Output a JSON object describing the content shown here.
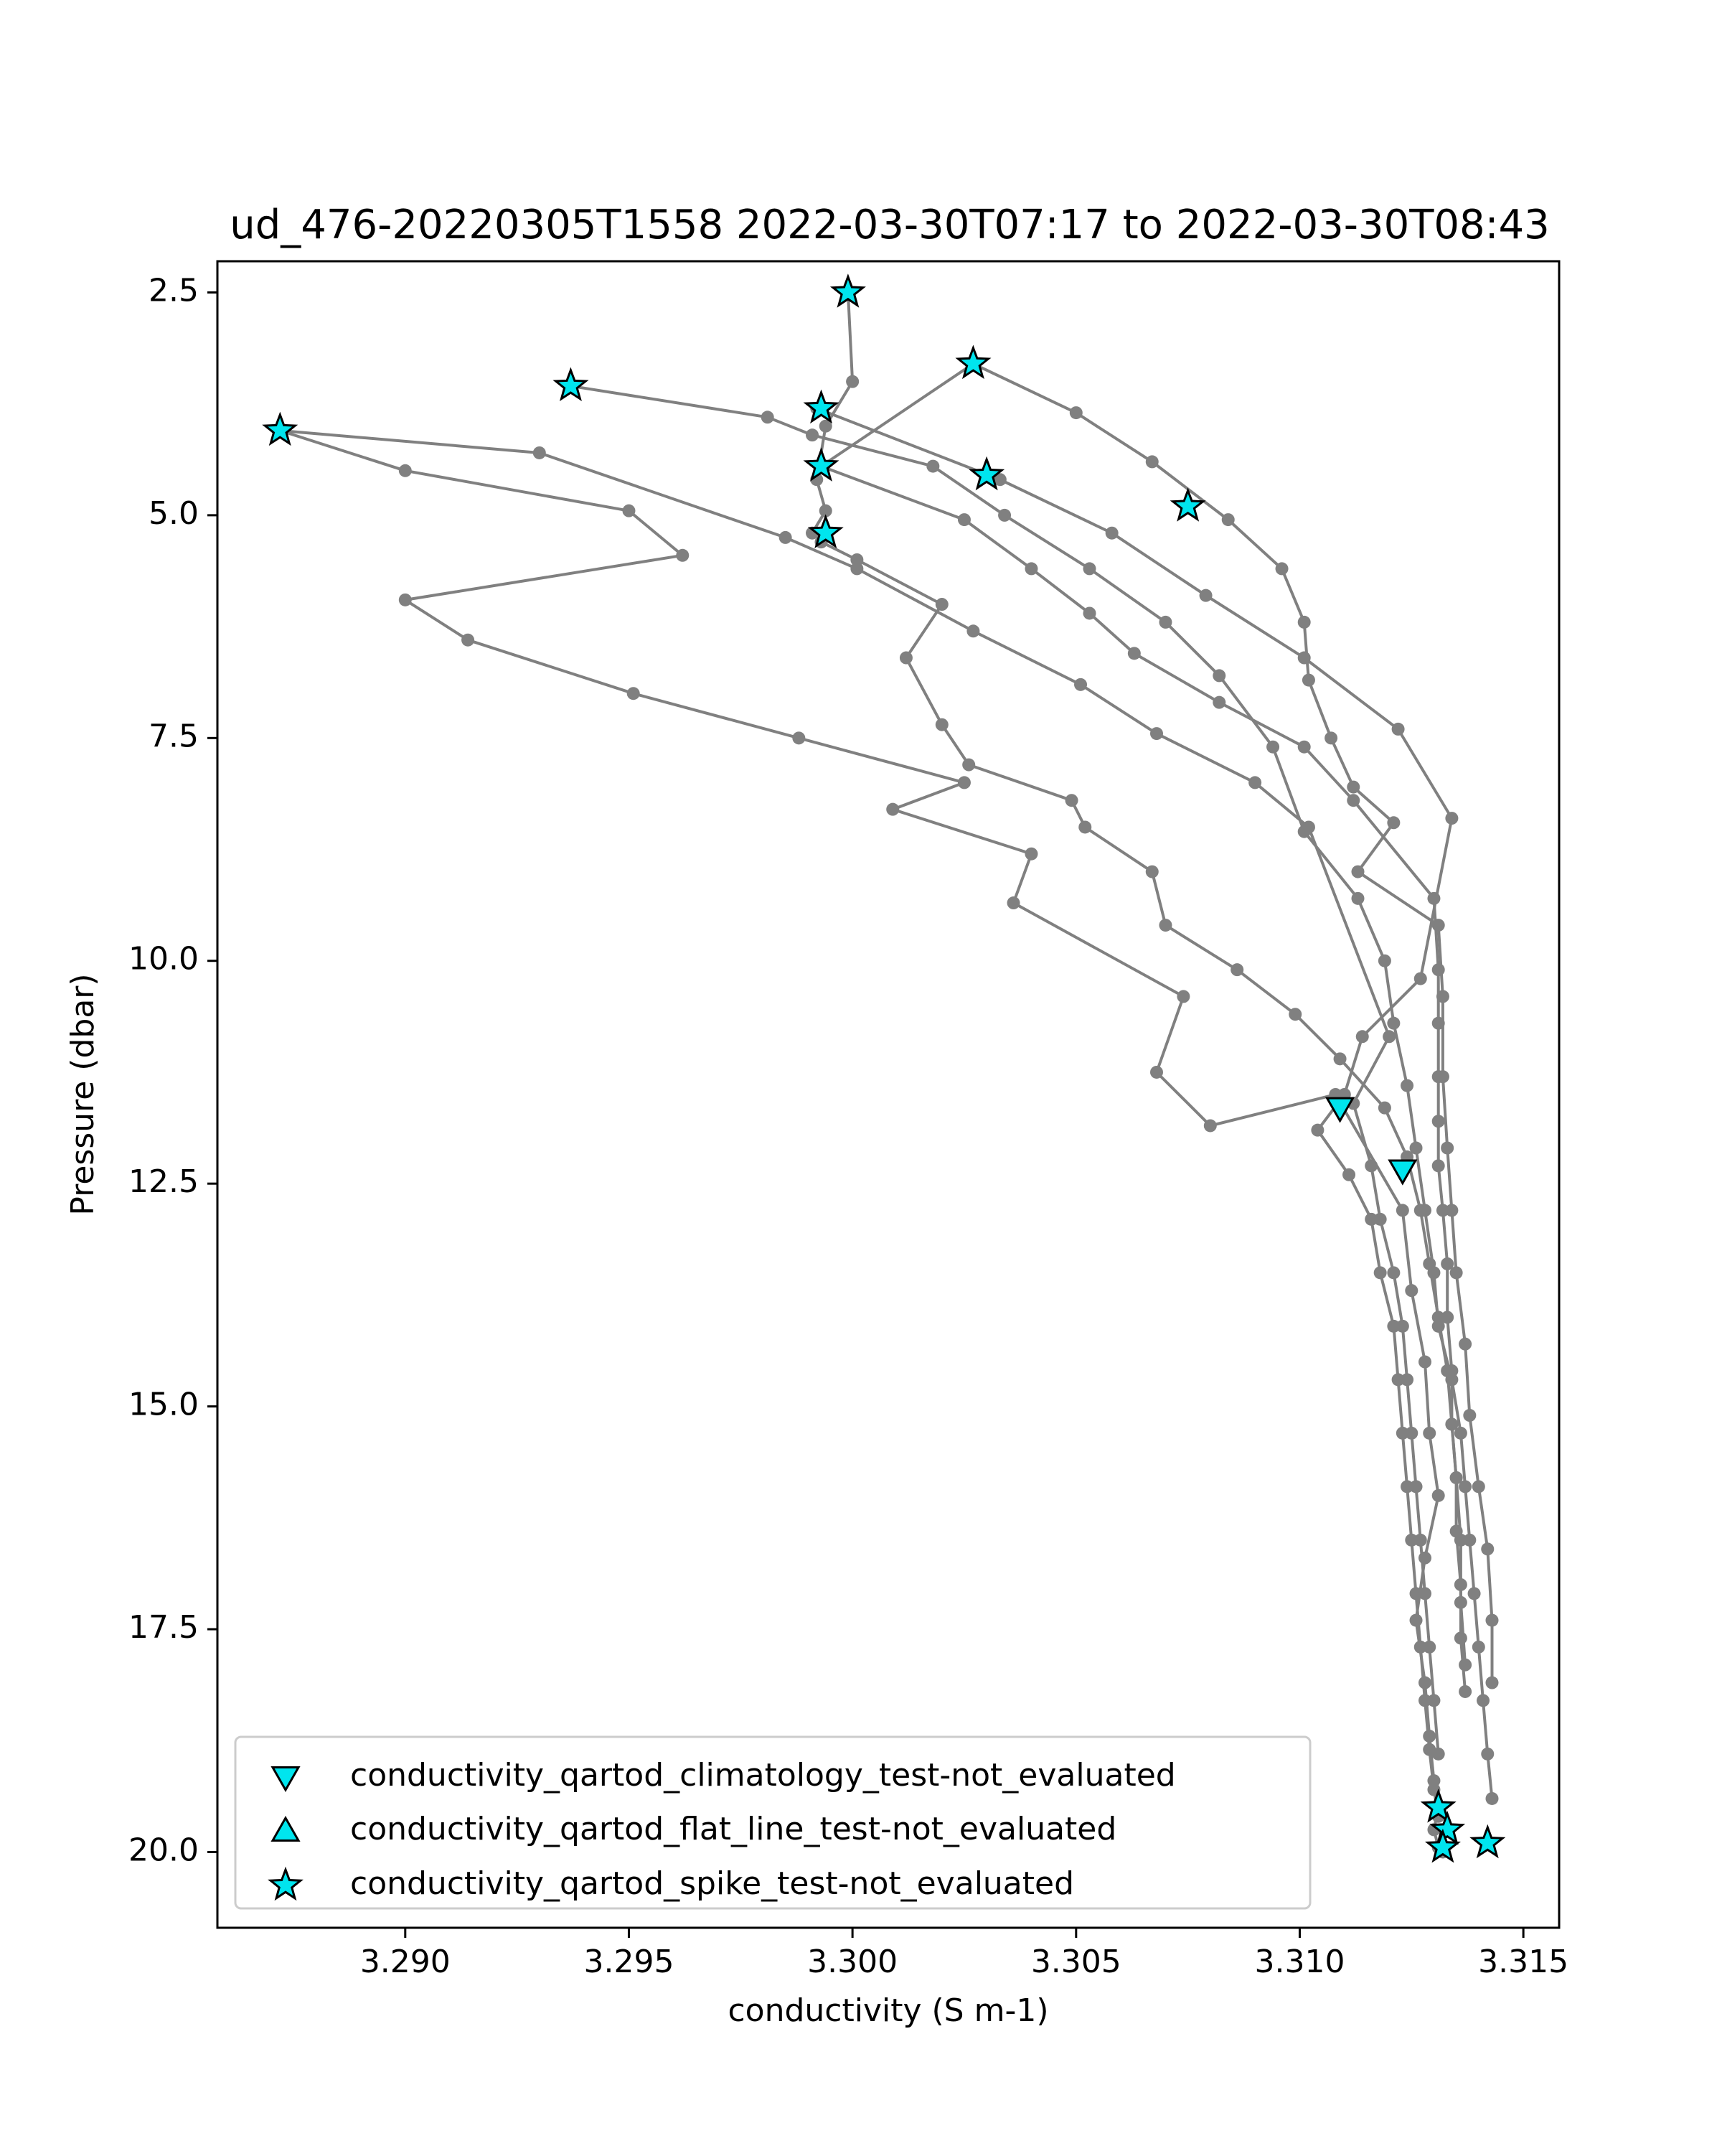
{
  "chart_data": {
    "type": "scatter",
    "title": "ud_476-20220305T1558 2022-03-30T07:17 to 2022-03-30T08:43",
    "xlabel": "conductivity (S m-1)",
    "ylabel": "Pressure (dbar)",
    "xlim": [
      3.2858,
      3.3158
    ],
    "ylim": [
      20.85,
      2.15
    ],
    "y_inverted": true,
    "grid": false,
    "x_ticks": [
      3.29,
      3.295,
      3.3,
      3.305,
      3.31,
      3.315
    ],
    "x_tick_labels": [
      "3.290",
      "3.295",
      "3.300",
      "3.305",
      "3.310",
      "3.315"
    ],
    "y_ticks": [
      2.5,
      5.0,
      7.5,
      10.0,
      12.5,
      15.0,
      17.5,
      20.0
    ],
    "y_tick_labels": [
      "2.5",
      "5.0",
      "7.5",
      "10.0",
      "12.5",
      "15.0",
      "17.5",
      "20.0"
    ],
    "line_color": "#808080",
    "marker_fill": "#00e5ee",
    "marker_edge": "#000000",
    "profiles": [
      {
        "x": [
          3.2872,
          3.29,
          3.295,
          3.2962,
          3.29,
          3.2914,
          3.2951,
          3.2988,
          3.3025,
          3.3009,
          3.304,
          3.3036,
          3.3074,
          3.3068,
          3.308,
          3.3108,
          3.3123,
          3.3125,
          3.3128,
          3.3129,
          3.3131,
          3.3128,
          3.3126,
          3.3128,
          3.3129,
          3.313,
          3.3131,
          3.313,
          3.3131,
          3.3132
        ],
        "y": [
          4.05,
          4.5,
          4.95,
          5.45,
          5.95,
          6.4,
          7.0,
          7.5,
          8.0,
          8.3,
          8.8,
          9.35,
          10.4,
          11.25,
          11.85,
          11.5,
          12.8,
          13.7,
          14.5,
          15.3,
          16.0,
          16.7,
          17.4,
          18.1,
          18.7,
          19.2,
          19.5,
          19.75,
          19.95,
          20.0
        ]
      },
      {
        "x": [
          3.2872,
          3.293,
          3.2985,
          3.3001,
          3.3027,
          3.3051,
          3.3068,
          3.309,
          3.3102,
          3.312,
          3.3112,
          3.3116,
          3.3118,
          3.3121,
          3.3123,
          3.3124,
          3.3125,
          3.3126,
          3.3127,
          3.3128,
          3.3129,
          3.313,
          3.3131
        ],
        "y": [
          4.05,
          4.3,
          5.25,
          5.6,
          6.3,
          6.9,
          7.45,
          8.0,
          8.5,
          10.85,
          11.6,
          12.3,
          12.9,
          13.5,
          14.1,
          14.7,
          15.3,
          15.9,
          16.5,
          17.1,
          17.7,
          18.3,
          18.9
        ]
      },
      {
        "x": [
          3.2937,
          3.2981,
          3.2991,
          3.3018,
          3.3034,
          3.3053,
          3.307,
          3.3082,
          3.3094,
          3.3101,
          3.3113,
          3.3119,
          3.3121,
          3.3124,
          3.3126,
          3.3128,
          3.313,
          3.3131,
          3.3134,
          3.3136,
          3.3137,
          3.3138,
          3.3139,
          3.314,
          3.3141,
          3.3142,
          3.3143
        ],
        "y": [
          3.55,
          3.9,
          4.1,
          4.45,
          5.0,
          5.6,
          6.2,
          6.8,
          7.6,
          8.55,
          9.3,
          10.0,
          10.7,
          11.4,
          12.1,
          12.8,
          13.5,
          14.1,
          14.7,
          15.3,
          15.9,
          16.5,
          17.1,
          17.7,
          18.3,
          18.9,
          19.4
        ]
      },
      {
        "x": [
          3.2999,
          3.3,
          3.2994,
          3.2992,
          3.2994,
          3.2991,
          3.2993,
          3.3001,
          3.302,
          3.3012,
          3.302,
          3.3026,
          3.3049,
          3.3052,
          3.3067,
          3.307,
          3.3086,
          3.3099,
          3.3109,
          3.3119,
          3.3124,
          3.3127,
          3.3129,
          3.3131,
          3.3133,
          3.3134,
          3.3135,
          3.3136,
          3.3136,
          3.3137
        ],
        "y": [
          2.5,
          3.5,
          4.0,
          4.6,
          4.95,
          5.2,
          5.3,
          5.5,
          6.0,
          6.6,
          7.35,
          7.8,
          8.2,
          8.5,
          9.0,
          9.6,
          10.1,
          10.6,
          11.1,
          11.65,
          12.2,
          12.8,
          13.4,
          14.0,
          14.6,
          15.2,
          15.8,
          16.5,
          17.2,
          17.9
        ]
      },
      {
        "x": [
          3.3027,
          3.2993,
          3.3025,
          3.304,
          3.3053,
          3.3063,
          3.3082,
          3.3101,
          3.3112,
          3.313,
          3.3131,
          3.3131,
          3.3131,
          3.3131,
          3.3131,
          3.3132,
          3.3133,
          3.3133,
          3.3134,
          3.3134,
          3.3135,
          3.3135,
          3.3136,
          3.3136,
          3.3137
        ],
        "y": [
          3.3,
          4.45,
          5.05,
          5.6,
          6.1,
          6.55,
          7.1,
          7.6,
          8.2,
          9.3,
          10.1,
          10.7,
          11.3,
          11.8,
          12.3,
          12.8,
          13.4,
          14.0,
          14.6,
          15.2,
          15.8,
          16.4,
          17.0,
          17.6,
          18.2
        ]
      },
      {
        "x": [
          3.2992,
          3.3033,
          3.3058,
          3.3079,
          3.3101,
          3.3122,
          3.3134,
          3.3127,
          3.3114,
          3.311,
          3.3104,
          3.3111,
          3.3116,
          3.3118,
          3.3121,
          3.3122,
          3.3123,
          3.3124,
          3.3125,
          3.3126,
          3.3127,
          3.3128,
          3.3129,
          3.313,
          3.3131
        ],
        "y": [
          3.8,
          4.6,
          5.2,
          5.9,
          6.6,
          7.4,
          8.4,
          10.2,
          10.85,
          11.5,
          11.9,
          12.4,
          12.9,
          13.5,
          14.1,
          14.7,
          15.3,
          15.9,
          16.5,
          17.1,
          17.7,
          18.3,
          18.85,
          19.3,
          19.6
        ]
      },
      {
        "x": [
          3.3027,
          3.305,
          3.3067,
          3.3084,
          3.3096,
          3.3101,
          3.3102,
          3.3107,
          3.3112,
          3.3121,
          3.3113,
          3.3131,
          3.3132,
          3.3132,
          3.3133,
          3.3134,
          3.3135,
          3.3137,
          3.3138,
          3.314,
          3.3142,
          3.3143,
          3.3143
        ],
        "y": [
          3.3,
          3.85,
          4.4,
          5.05,
          5.6,
          6.2,
          6.85,
          7.5,
          8.05,
          8.45,
          9.0,
          9.6,
          10.4,
          11.3,
          12.1,
          12.8,
          13.5,
          14.3,
          15.1,
          15.9,
          16.6,
          17.4,
          18.1
        ]
      }
    ],
    "flagged": [
      {
        "test": "climatology",
        "marker": "triangle-down",
        "points": [
          [
            3.3109,
            11.65
          ],
          [
            3.3123,
            12.35
          ]
        ]
      },
      {
        "test": "flat_line",
        "marker": "triangle-up",
        "points": []
      },
      {
        "test": "spike",
        "marker": "star",
        "points": [
          [
            3.2872,
            4.05
          ],
          [
            3.2937,
            3.55
          ],
          [
            3.2999,
            2.5
          ],
          [
            3.3027,
            3.3
          ],
          [
            3.2993,
            3.8
          ],
          [
            3.2993,
            4.45
          ],
          [
            3.303,
            4.55
          ],
          [
            3.3075,
            4.9
          ],
          [
            3.2994,
            5.2
          ],
          [
            3.3131,
            19.5
          ],
          [
            3.3133,
            19.75
          ],
          [
            3.3132,
            19.95
          ],
          [
            3.3142,
            19.9
          ]
        ]
      }
    ],
    "legend": {
      "placement": "lower-left",
      "entries": [
        {
          "label": "conductivity_qartod_climatology_test-not_evaluated",
          "marker": "triangle-down"
        },
        {
          "label": "conductivity_qartod_flat_line_test-not_evaluated",
          "marker": "triangle-up"
        },
        {
          "label": "conductivity_qartod_spike_test-not_evaluated",
          "marker": "star"
        }
      ]
    }
  }
}
